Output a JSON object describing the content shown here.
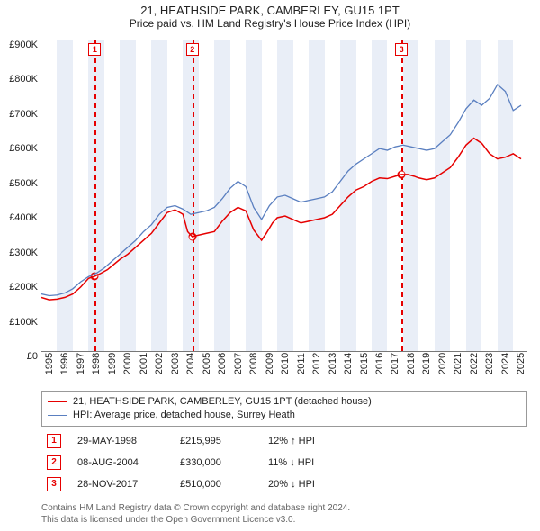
{
  "title": "21, HEATHSIDE PARK, CAMBERLEY, GU15 1PT",
  "subtitle": "Price paid vs. HM Land Registry's House Price Index (HPI)",
  "chart": {
    "type": "line",
    "xlim": [
      1995,
      2025.9
    ],
    "ylim": [
      0,
      900
    ],
    "y_unit_prefix": "£",
    "y_unit_suffix": "K",
    "y_ticks": [
      0,
      100,
      200,
      300,
      400,
      500,
      600,
      700,
      800,
      900
    ],
    "x_ticks": [
      1995,
      1996,
      1997,
      1998,
      1999,
      2000,
      2001,
      2002,
      2003,
      2004,
      2005,
      2006,
      2007,
      2008,
      2009,
      2010,
      2011,
      2012,
      2013,
      2014,
      2015,
      2016,
      2017,
      2018,
      2019,
      2020,
      2021,
      2022,
      2023,
      2024,
      2025
    ],
    "background_color": "#ffffff",
    "band_color": "#e9eef7",
    "vline_color": "#e60000",
    "series": [
      {
        "name": "21, HEATHSIDE PARK, CAMBERLEY, GU15 1PT (detached house)",
        "color": "#e60000",
        "width": 1.5,
        "points": [
          [
            1995.0,
            155
          ],
          [
            1995.5,
            148
          ],
          [
            1996.0,
            150
          ],
          [
            1996.5,
            155
          ],
          [
            1997.0,
            165
          ],
          [
            1997.5,
            185
          ],
          [
            1998.0,
            210
          ],
          [
            1998.4,
            216
          ],
          [
            1998.8,
            225
          ],
          [
            1999.2,
            235
          ],
          [
            1999.6,
            250
          ],
          [
            2000.0,
            265
          ],
          [
            2000.5,
            280
          ],
          [
            2001.0,
            300
          ],
          [
            2001.5,
            320
          ],
          [
            2002.0,
            340
          ],
          [
            2002.5,
            370
          ],
          [
            2003.0,
            400
          ],
          [
            2003.5,
            408
          ],
          [
            2004.0,
            395
          ],
          [
            2004.3,
            345
          ],
          [
            2004.6,
            330
          ],
          [
            2005.0,
            335
          ],
          [
            2005.5,
            340
          ],
          [
            2006.0,
            345
          ],
          [
            2006.5,
            375
          ],
          [
            2007.0,
            400
          ],
          [
            2007.5,
            415
          ],
          [
            2008.0,
            405
          ],
          [
            2008.5,
            350
          ],
          [
            2009.0,
            320
          ],
          [
            2009.3,
            340
          ],
          [
            2009.7,
            370
          ],
          [
            2010.0,
            385
          ],
          [
            2010.5,
            390
          ],
          [
            2011.0,
            380
          ],
          [
            2011.5,
            370
          ],
          [
            2012.0,
            375
          ],
          [
            2012.5,
            380
          ],
          [
            2013.0,
            385
          ],
          [
            2013.5,
            395
          ],
          [
            2014.0,
            420
          ],
          [
            2014.5,
            445
          ],
          [
            2015.0,
            465
          ],
          [
            2015.5,
            475
          ],
          [
            2016.0,
            490
          ],
          [
            2016.5,
            500
          ],
          [
            2017.0,
            498
          ],
          [
            2017.5,
            505
          ],
          [
            2017.9,
            510
          ],
          [
            2018.3,
            510
          ],
          [
            2018.7,
            505
          ],
          [
            2019.0,
            500
          ],
          [
            2019.5,
            495
          ],
          [
            2020.0,
            500
          ],
          [
            2020.5,
            515
          ],
          [
            2021.0,
            530
          ],
          [
            2021.5,
            560
          ],
          [
            2022.0,
            595
          ],
          [
            2022.5,
            615
          ],
          [
            2023.0,
            600
          ],
          [
            2023.5,
            570
          ],
          [
            2024.0,
            555
          ],
          [
            2024.5,
            560
          ],
          [
            2025.0,
            570
          ],
          [
            2025.5,
            555
          ]
        ]
      },
      {
        "name": "HPI: Average price, detached house, Surrey Heath",
        "color": "#5a7fc0",
        "width": 1.3,
        "points": [
          [
            1995.0,
            165
          ],
          [
            1995.5,
            160
          ],
          [
            1996.0,
            162
          ],
          [
            1996.5,
            168
          ],
          [
            1997.0,
            180
          ],
          [
            1997.5,
            200
          ],
          [
            1998.0,
            215
          ],
          [
            1998.5,
            225
          ],
          [
            1999.0,
            240
          ],
          [
            1999.5,
            260
          ],
          [
            2000.0,
            280
          ],
          [
            2000.5,
            300
          ],
          [
            2001.0,
            320
          ],
          [
            2001.5,
            345
          ],
          [
            2002.0,
            365
          ],
          [
            2002.5,
            395
          ],
          [
            2003.0,
            415
          ],
          [
            2003.5,
            420
          ],
          [
            2004.0,
            410
          ],
          [
            2004.5,
            395
          ],
          [
            2005.0,
            400
          ],
          [
            2005.5,
            405
          ],
          [
            2006.0,
            415
          ],
          [
            2006.5,
            440
          ],
          [
            2007.0,
            470
          ],
          [
            2007.5,
            490
          ],
          [
            2008.0,
            475
          ],
          [
            2008.5,
            415
          ],
          [
            2009.0,
            380
          ],
          [
            2009.5,
            420
          ],
          [
            2010.0,
            445
          ],
          [
            2010.5,
            450
          ],
          [
            2011.0,
            440
          ],
          [
            2011.5,
            430
          ],
          [
            2012.0,
            435
          ],
          [
            2012.5,
            440
          ],
          [
            2013.0,
            445
          ],
          [
            2013.5,
            460
          ],
          [
            2014.0,
            490
          ],
          [
            2014.5,
            520
          ],
          [
            2015.0,
            540
          ],
          [
            2015.5,
            555
          ],
          [
            2016.0,
            570
          ],
          [
            2016.5,
            585
          ],
          [
            2017.0,
            580
          ],
          [
            2017.5,
            590
          ],
          [
            2018.0,
            595
          ],
          [
            2018.5,
            590
          ],
          [
            2019.0,
            585
          ],
          [
            2019.5,
            580
          ],
          [
            2020.0,
            585
          ],
          [
            2020.5,
            605
          ],
          [
            2021.0,
            625
          ],
          [
            2021.5,
            660
          ],
          [
            2022.0,
            700
          ],
          [
            2022.5,
            725
          ],
          [
            2023.0,
            710
          ],
          [
            2023.5,
            730
          ],
          [
            2024.0,
            770
          ],
          [
            2024.5,
            750
          ],
          [
            2025.0,
            695
          ],
          [
            2025.5,
            710
          ]
        ]
      }
    ],
    "events": [
      {
        "n": "1",
        "x": 1998.4,
        "price_y": 216,
        "date": "29-MAY-1998",
        "price": "£215,995",
        "delta": "12% ↑ HPI"
      },
      {
        "n": "2",
        "x": 2004.6,
        "price_y": 330,
        "date": "08-AUG-2004",
        "price": "£330,000",
        "delta": "11% ↓ HPI"
      },
      {
        "n": "3",
        "x": 2017.9,
        "price_y": 510,
        "date": "28-NOV-2017",
        "price": "£510,000",
        "delta": "20% ↓ HPI"
      }
    ]
  },
  "legend": {
    "rows": [
      {
        "color": "#e60000",
        "label": "21, HEATHSIDE PARK, CAMBERLEY, GU15 1PT (detached house)"
      },
      {
        "color": "#5a7fc0",
        "label": "HPI: Average price, detached house, Surrey Heath"
      }
    ]
  },
  "attribution": {
    "line1": "Contains HM Land Registry data © Crown copyright and database right 2024.",
    "line2": "This data is licensed under the Open Government Licence v3.0."
  }
}
